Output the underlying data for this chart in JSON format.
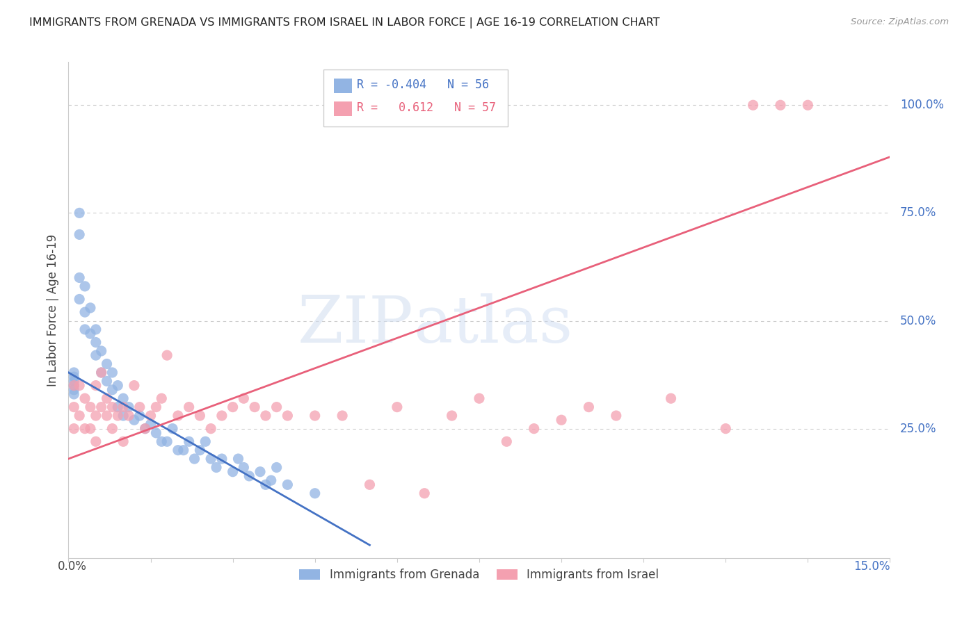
{
  "title": "IMMIGRANTS FROM GRENADA VS IMMIGRANTS FROM ISRAEL IN LABOR FORCE | AGE 16-19 CORRELATION CHART",
  "source": "Source: ZipAtlas.com",
  "ylabel": "In Labor Force | Age 16-19",
  "xlim": [
    0.0,
    0.15
  ],
  "ylim": [
    -0.05,
    1.1
  ],
  "grenada_color": "#92b4e3",
  "israel_color": "#f4a0b0",
  "grenada_line_color": "#4472c4",
  "israel_line_color": "#e8607a",
  "grenada_R": -0.404,
  "grenada_N": 56,
  "israel_R": 0.612,
  "israel_N": 57,
  "grenada_line_x0": 0.0,
  "grenada_line_y0": 0.38,
  "grenada_line_x1": 0.055,
  "grenada_line_y1": -0.02,
  "israel_line_x0": 0.0,
  "israel_line_y0": 0.18,
  "israel_line_x1": 0.15,
  "israel_line_y1": 0.88,
  "grenada_scatter_x": [
    0.001,
    0.001,
    0.001,
    0.001,
    0.001,
    0.001,
    0.002,
    0.002,
    0.002,
    0.002,
    0.003,
    0.003,
    0.003,
    0.004,
    0.004,
    0.005,
    0.005,
    0.005,
    0.006,
    0.006,
    0.007,
    0.007,
    0.008,
    0.008,
    0.009,
    0.009,
    0.01,
    0.01,
    0.011,
    0.012,
    0.013,
    0.014,
    0.015,
    0.016,
    0.017,
    0.018,
    0.019,
    0.02,
    0.021,
    0.022,
    0.023,
    0.024,
    0.025,
    0.026,
    0.027,
    0.028,
    0.03,
    0.031,
    0.032,
    0.033,
    0.035,
    0.036,
    0.037,
    0.038,
    0.04,
    0.045
  ],
  "grenada_scatter_y": [
    0.38,
    0.37,
    0.35,
    0.34,
    0.33,
    0.36,
    0.75,
    0.7,
    0.6,
    0.55,
    0.58,
    0.52,
    0.48,
    0.53,
    0.47,
    0.48,
    0.42,
    0.45,
    0.43,
    0.38,
    0.4,
    0.36,
    0.38,
    0.34,
    0.35,
    0.3,
    0.32,
    0.28,
    0.3,
    0.27,
    0.28,
    0.25,
    0.26,
    0.24,
    0.22,
    0.22,
    0.25,
    0.2,
    0.2,
    0.22,
    0.18,
    0.2,
    0.22,
    0.18,
    0.16,
    0.18,
    0.15,
    0.18,
    0.16,
    0.14,
    0.15,
    0.12,
    0.13,
    0.16,
    0.12,
    0.1
  ],
  "israel_scatter_x": [
    0.001,
    0.001,
    0.001,
    0.002,
    0.002,
    0.003,
    0.003,
    0.004,
    0.004,
    0.005,
    0.005,
    0.005,
    0.006,
    0.006,
    0.007,
    0.007,
    0.008,
    0.008,
    0.009,
    0.01,
    0.01,
    0.011,
    0.012,
    0.013,
    0.014,
    0.015,
    0.016,
    0.017,
    0.018,
    0.02,
    0.022,
    0.024,
    0.026,
    0.028,
    0.03,
    0.032,
    0.034,
    0.036,
    0.038,
    0.04,
    0.045,
    0.05,
    0.055,
    0.06,
    0.065,
    0.07,
    0.075,
    0.08,
    0.085,
    0.09,
    0.095,
    0.1,
    0.11,
    0.12,
    0.125,
    0.13,
    0.135
  ],
  "israel_scatter_y": [
    0.35,
    0.3,
    0.25,
    0.28,
    0.35,
    0.25,
    0.32,
    0.3,
    0.25,
    0.22,
    0.28,
    0.35,
    0.3,
    0.38,
    0.28,
    0.32,
    0.25,
    0.3,
    0.28,
    0.3,
    0.22,
    0.28,
    0.35,
    0.3,
    0.25,
    0.28,
    0.3,
    0.32,
    0.42,
    0.28,
    0.3,
    0.28,
    0.25,
    0.28,
    0.3,
    0.32,
    0.3,
    0.28,
    0.3,
    0.28,
    0.28,
    0.28,
    0.12,
    0.3,
    0.1,
    0.28,
    0.32,
    0.22,
    0.25,
    0.27,
    0.3,
    0.28,
    0.32,
    0.25,
    1.0,
    1.0,
    1.0
  ]
}
